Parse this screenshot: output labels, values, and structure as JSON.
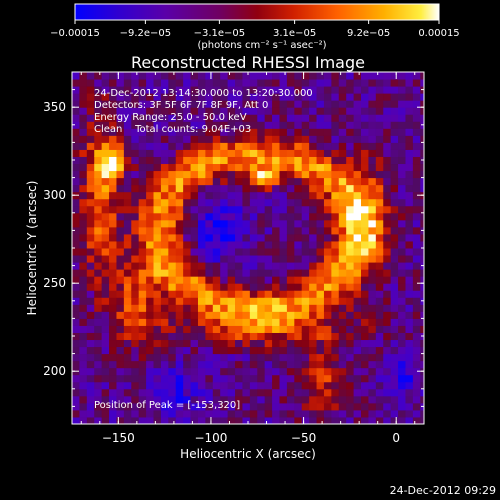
{
  "chart_data": {
    "type": "heatmap",
    "title": "Reconstructed RHESSI Image",
    "xlabel": "Heliocentric X (arcsec)",
    "ylabel": "Heliocentric Y (arcsec)",
    "xlim": [
      -175,
      15
    ],
    "ylim": [
      170,
      370
    ],
    "x_ticks": [
      -150,
      -100,
      -50,
      0
    ],
    "x_tick_labels": [
      "−150",
      "−100",
      "−50",
      "0"
    ],
    "y_ticks": [
      200,
      250,
      300,
      350
    ],
    "y_tick_labels": [
      "200",
      "250",
      "300",
      "350"
    ],
    "colorbar": {
      "min": -0.00015,
      "max": 0.00015,
      "tick_labels": [
        "−0.00015",
        "−9.2e−05",
        "−3.1e−05",
        "3.1e−05",
        "9.2e−05",
        "0.00015"
      ],
      "tick_values": [
        -0.00015,
        -9.2e-05,
        -3.1e-05,
        3.1e-05,
        9.2e-05,
        0.00015
      ],
      "unit_label": "(photons cm⁻² s⁻¹ asec⁻²)",
      "colors": [
        "#0000ff",
        "#4000c0",
        "#6000a0",
        "#800040",
        "#c00000",
        "#ff5000",
        "#ffa000",
        "#ffe000",
        "#ffffff"
      ]
    },
    "annotations": [
      "24-Dec-2012 13:14:30.000 to 13:20:30.000",
      "Detectors: 3F 5F 6F 7F 8F 9F, Att 0",
      "Energy Range: 25.0 - 50.0 keV",
      "Clean    Total counts: 9.04E+03"
    ],
    "peak_label": "Position of Peak = [-153,320]",
    "peak": [
      -153,
      320
    ],
    "grid": false
  },
  "timestamp": "24-Dec-2012 09:29"
}
